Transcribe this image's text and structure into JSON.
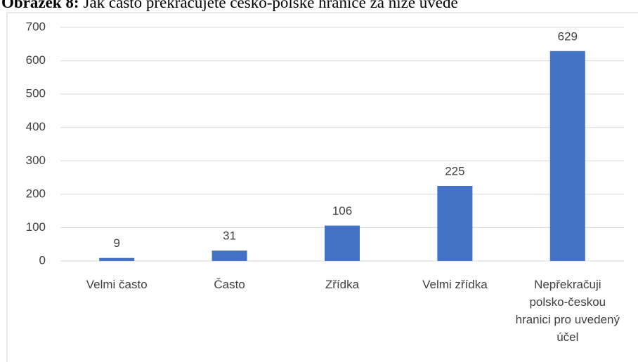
{
  "chart_data": {
    "type": "bar",
    "title_label": "Obrázek 8:",
    "title": "Jak často překračujete česko-polské hranice za níže uvede",
    "categories": [
      "Velmi často",
      "Často",
      "Zřídka",
      "Velmi zřídka",
      "Nepřekračuji polsko-českou hranici pro uvedený účel"
    ],
    "values": [
      9,
      31,
      106,
      225,
      629
    ],
    "color": "#4472c4",
    "ylim": [
      0,
      700
    ],
    "yticks": [
      0,
      100,
      200,
      300,
      400,
      500,
      600,
      700
    ],
    "grid": true
  }
}
